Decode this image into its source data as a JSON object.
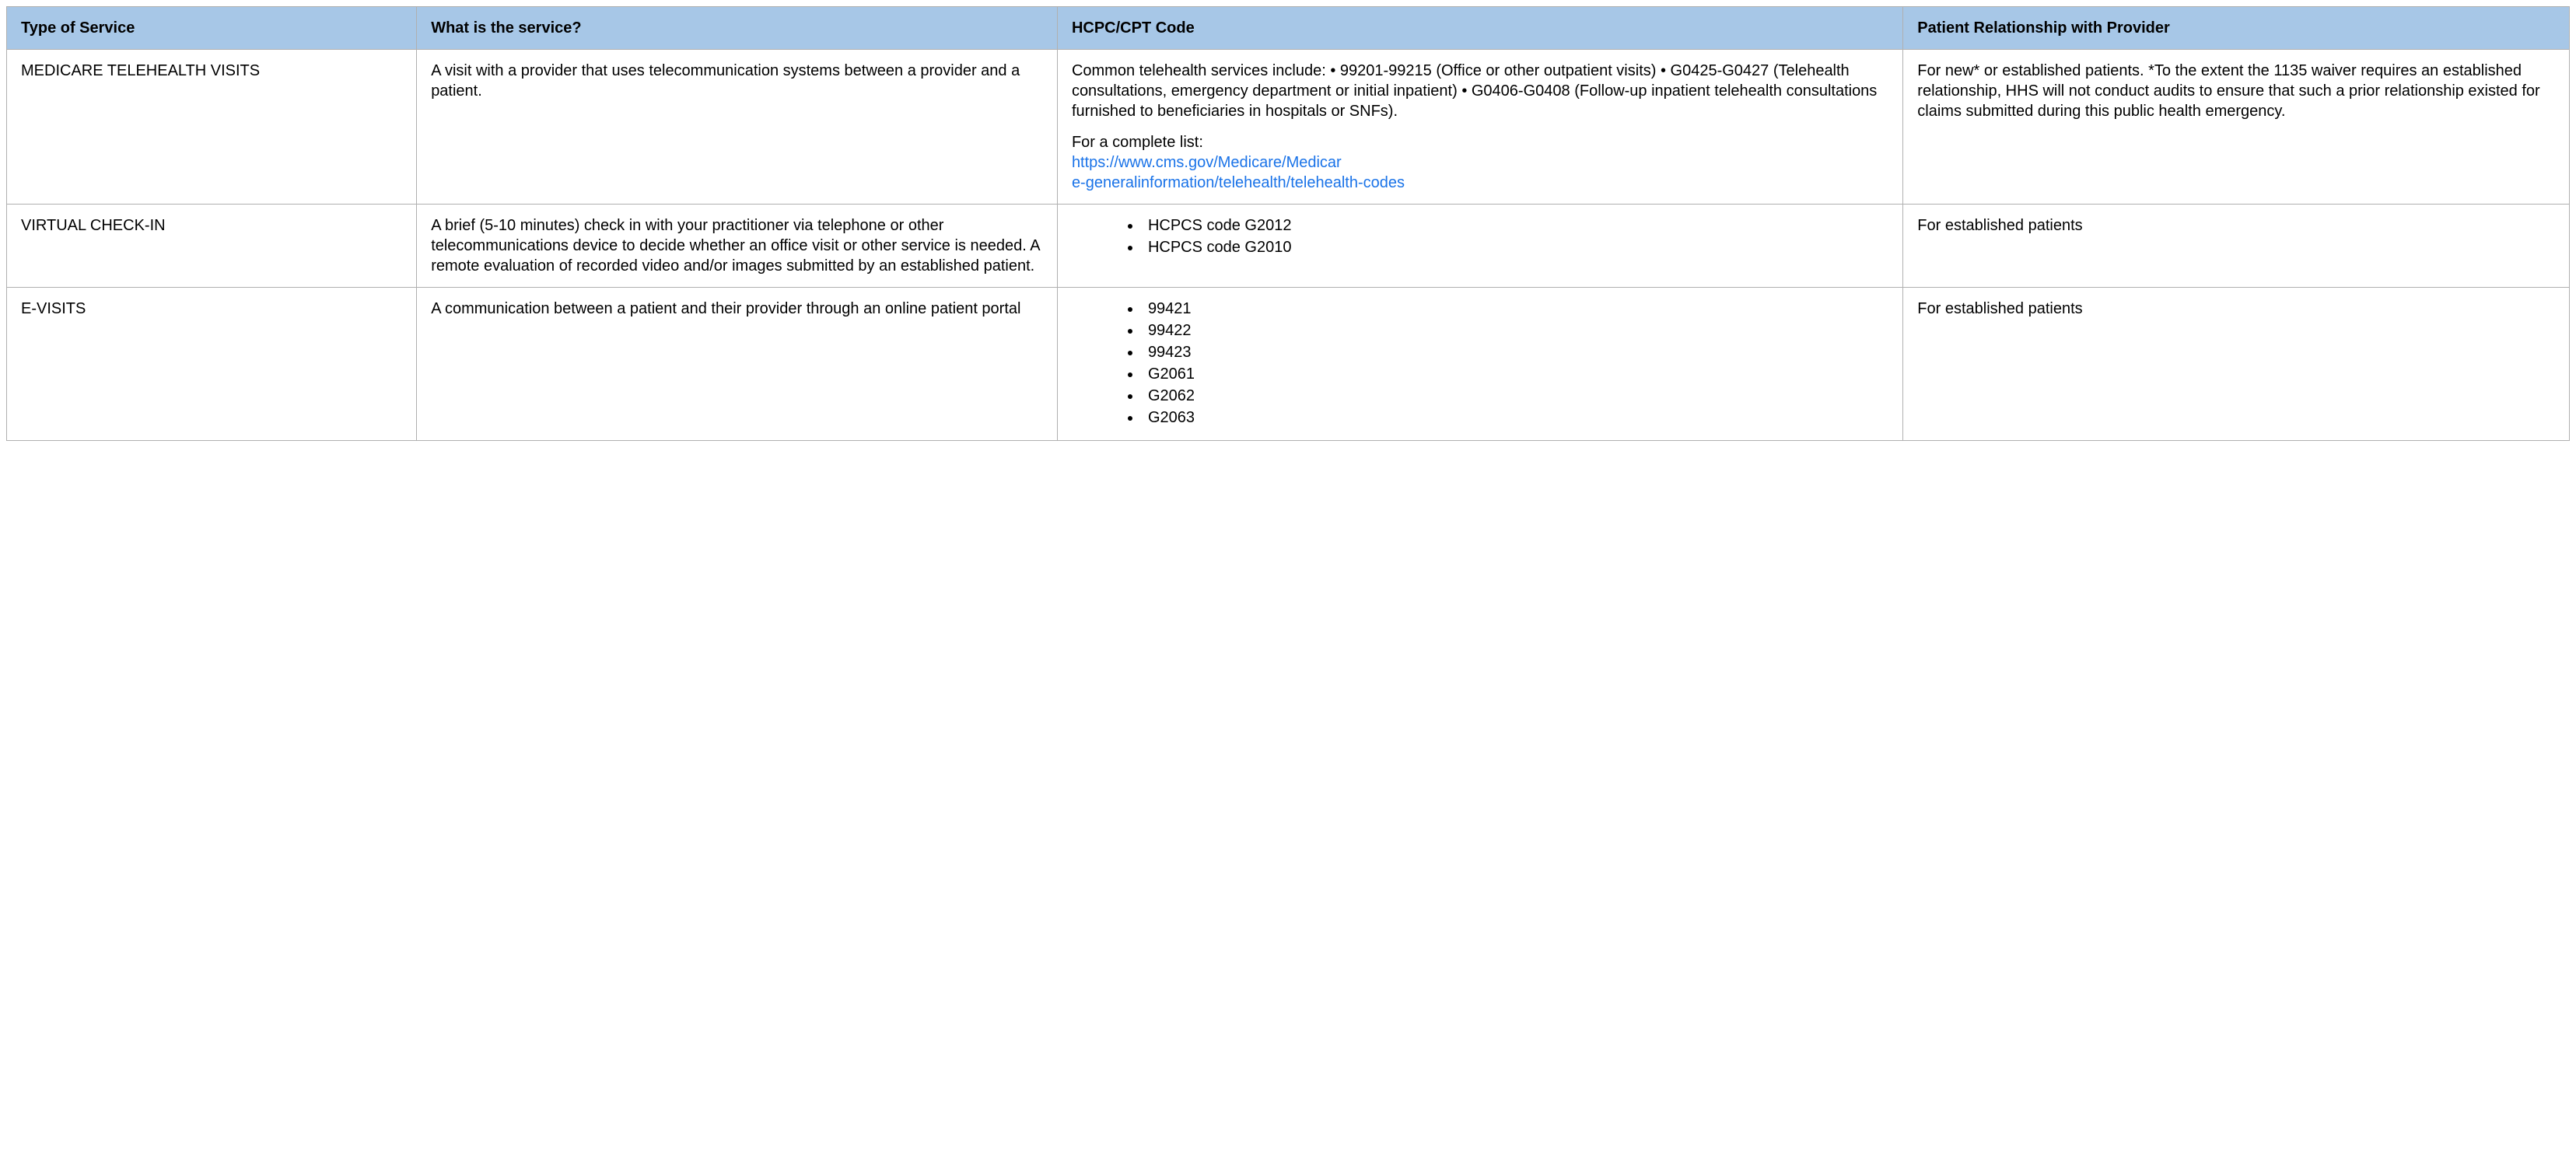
{
  "table": {
    "header_bg": "#a7c7e7",
    "border_color": "#b0b0b0",
    "link_color": "#1a73e8",
    "font_family": "Arial",
    "cell_fontsize": 20,
    "columns": [
      {
        "label": "Type of Service",
        "width_pct": 16
      },
      {
        "label": "What is the service?",
        "width_pct": 25
      },
      {
        "label": "HCPC/CPT Code",
        "width_pct": 33
      },
      {
        "label": "Patient Relationship with Provider",
        "width_pct": 26
      }
    ],
    "rows": [
      {
        "type": "MEDICARE TELEHEALTH VISITS",
        "what": "A visit with a provider that uses telecommunication systems between a provider and a patient.",
        "code_kind": "paragraph_link",
        "code_paragraph": "Common telehealth services include: • 99201-99215 (Office or other outpatient visits) • G0425-G0427 (Telehealth consultations, emergency department or initial inpatient) • G0406-G0408 (Follow-up inpatient telehealth consultations furnished to beneficiaries in hospitals or SNFs).",
        "code_link_intro": "For a complete list:",
        "code_link_text_line1": "https://www.cms.gov/Medicare/Medicar",
        "code_link_text_line2": "e-generalinformation/telehealth/telehealth-codes",
        "relationship": "For new* or established patients. *To the extent the 1135 waiver requires an established relationship, HHS will not conduct audits to ensure that such a prior relationship existed for claims submitted during this public health emergency."
      },
      {
        "type": "VIRTUAL CHECK-IN",
        "what": "A brief (5-10 minutes) check in with your practitioner via telephone or other telecommunications device to decide whether an office visit or other service is needed. A remote evaluation of recorded video and/or images submitted by an established patient.",
        "code_kind": "list",
        "code_list": [
          "HCPCS code G2012",
          "HCPCS code G2010"
        ],
        "relationship": "For established patients"
      },
      {
        "type": "E-VISITS",
        "what": "A communication between a patient and their provider through an online patient portal",
        "code_kind": "list",
        "code_list": [
          "99421",
          "99422",
          "99423",
          "G2061",
          "G2062",
          "G2063"
        ],
        "relationship": "For established patients"
      }
    ]
  }
}
